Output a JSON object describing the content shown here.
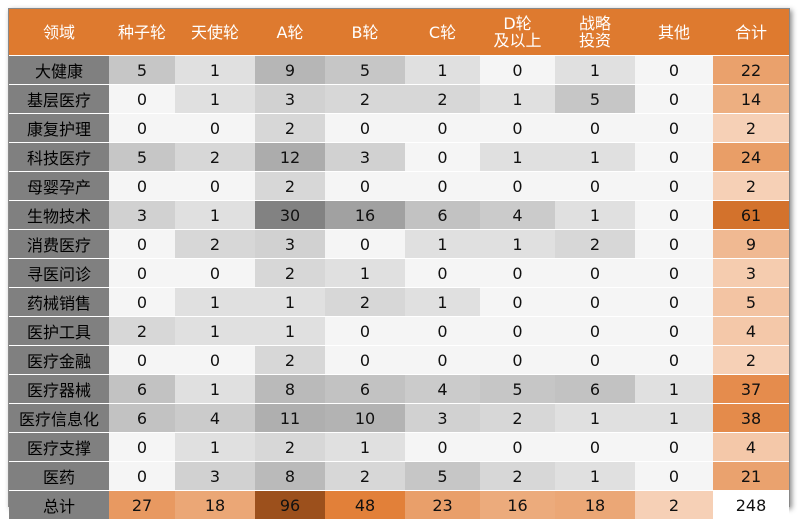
{
  "table": {
    "header": [
      "领域",
      "种子轮",
      "天使轮",
      "A轮",
      "B轮",
      "C轮",
      "D轮\n及以上",
      "战略\n投资",
      "其他",
      "合计"
    ],
    "rows": [
      [
        "大健康",
        5,
        1,
        9,
        5,
        1,
        0,
        1,
        0,
        22
      ],
      [
        "基层医疗",
        0,
        1,
        3,
        2,
        2,
        1,
        5,
        0,
        14
      ],
      [
        "康复护理",
        0,
        0,
        2,
        0,
        0,
        0,
        0,
        0,
        2
      ],
      [
        "科技医疗",
        5,
        2,
        12,
        3,
        0,
        1,
        1,
        0,
        24
      ],
      [
        "母婴孕产",
        0,
        0,
        2,
        0,
        0,
        0,
        0,
        0,
        2
      ],
      [
        "生物技术",
        3,
        1,
        30,
        16,
        6,
        4,
        1,
        0,
        61
      ],
      [
        "消费医疗",
        0,
        2,
        3,
        0,
        1,
        1,
        2,
        0,
        9
      ],
      [
        "寻医问诊",
        0,
        0,
        2,
        1,
        0,
        0,
        0,
        0,
        3
      ],
      [
        "药械销售",
        0,
        1,
        1,
        2,
        1,
        0,
        0,
        0,
        5
      ],
      [
        "医护工具",
        2,
        1,
        1,
        0,
        0,
        0,
        0,
        0,
        4
      ],
      [
        "医疗金融",
        0,
        0,
        2,
        0,
        0,
        0,
        0,
        0,
        2
      ],
      [
        "医疗器械",
        6,
        1,
        8,
        6,
        4,
        5,
        6,
        1,
        37
      ],
      [
        "医疗信息化",
        6,
        4,
        11,
        10,
        3,
        2,
        1,
        1,
        38
      ],
      [
        "医疗支撑",
        0,
        1,
        2,
        1,
        0,
        0,
        0,
        0,
        4
      ],
      [
        "医药",
        0,
        3,
        8,
        2,
        5,
        2,
        1,
        0,
        21
      ],
      [
        "总计",
        27,
        18,
        96,
        48,
        23,
        16,
        18,
        2,
        248
      ]
    ]
  }
}
